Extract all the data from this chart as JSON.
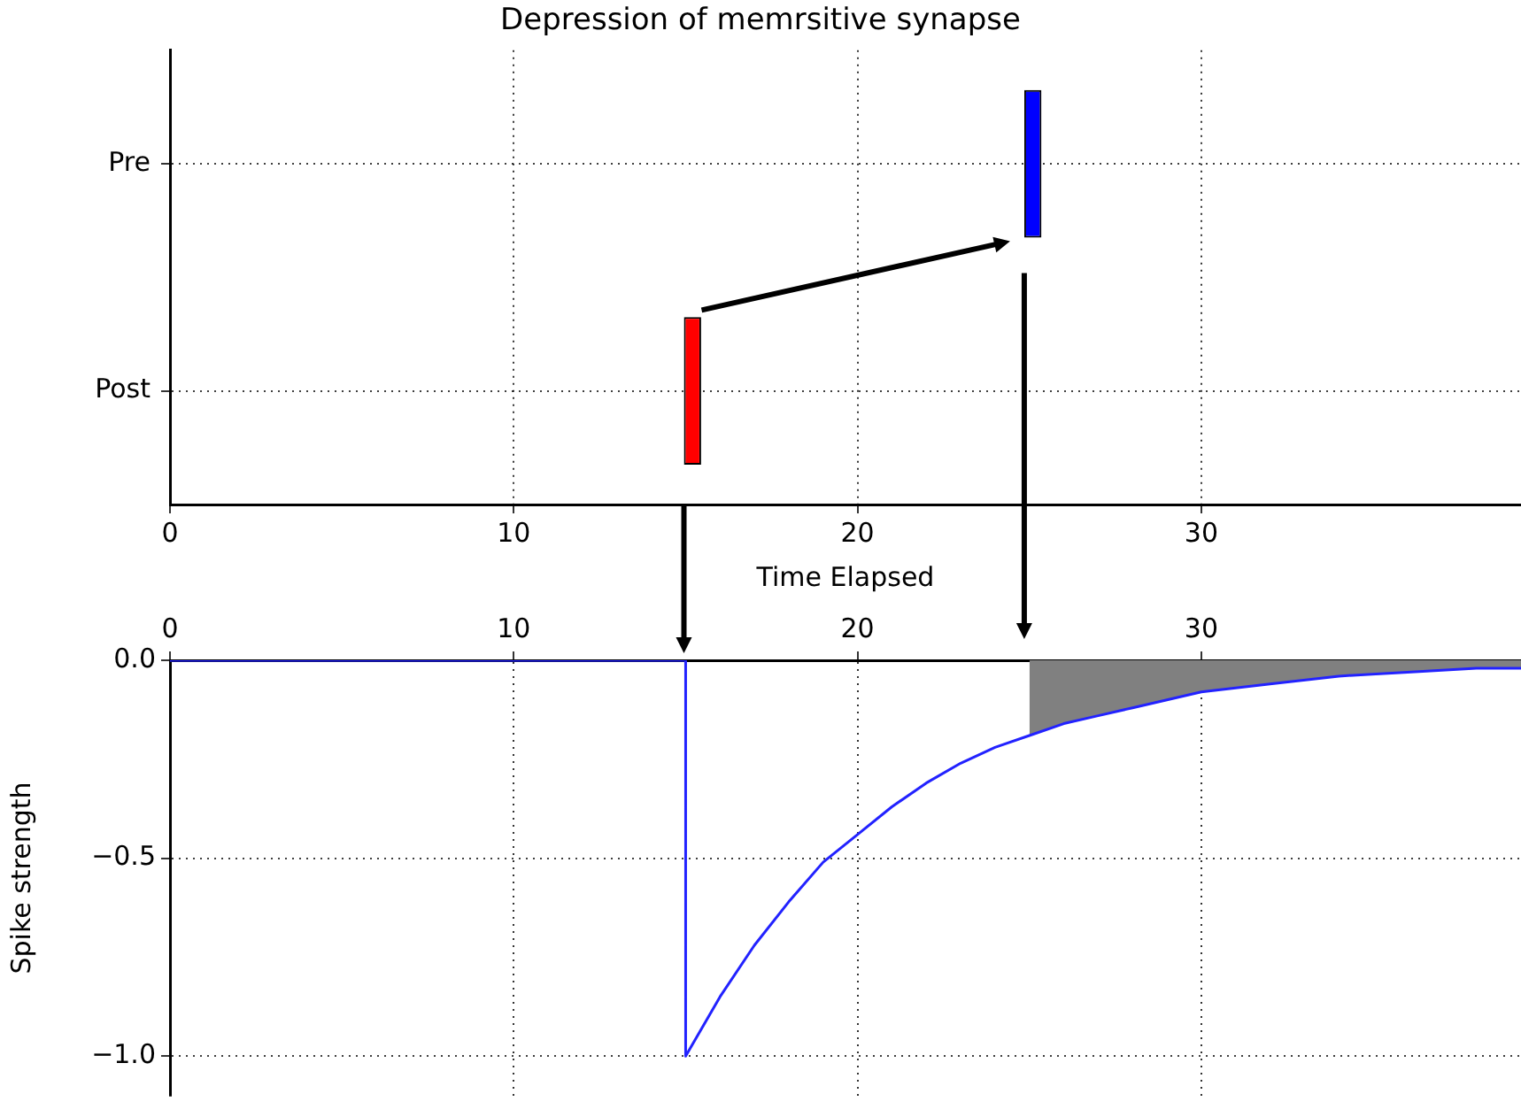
{
  "chart_data": [
    {
      "type": "bar",
      "orientation": "horizontal",
      "title": "Depression of memrsitive synapse",
      "xlabel": "Time Elapsed",
      "categories": [
        "Pre",
        "Post"
      ],
      "base": [
        24.85,
        14.95
      ],
      "values": [
        0.5,
        0.5
      ],
      "colors": [
        "#0000ff",
        "#ff0000"
      ],
      "xlim": [
        0,
        39.3
      ],
      "xticks": [
        0,
        10,
        20,
        30
      ],
      "grid": true
    },
    {
      "type": "line",
      "ylabel": "Spike strength",
      "xlim": [
        0,
        39.3
      ],
      "xticks": [
        0,
        10,
        20,
        30
      ],
      "ylim": [
        -1.1,
        0
      ],
      "yticks": [
        {
          "value": 0,
          "label": "0.0"
        },
        {
          "value": -0.5,
          "label": "−0.5"
        },
        {
          "value": -1,
          "label": "−1.0"
        }
      ],
      "grid": true,
      "series": [
        {
          "type": "line",
          "color": "#2222ff",
          "x": [
            0,
            15,
            15,
            16,
            17,
            18,
            19,
            20,
            21,
            22,
            23,
            24,
            25,
            26,
            27,
            28,
            29,
            30,
            32,
            34,
            36,
            38,
            39.3
          ],
          "values": [
            0,
            0,
            -1,
            -0.85,
            -0.72,
            -0.61,
            -0.51,
            -0.44,
            -0.37,
            -0.31,
            -0.26,
            -0.22,
            -0.19,
            -0.16,
            -0.14,
            -0.12,
            -0.1,
            -0.08,
            -0.06,
            -0.04,
            -0.03,
            -0.02,
            -0.02
          ]
        },
        {
          "type": "area",
          "color": "#808080",
          "x": [
            25,
            26,
            27,
            28,
            29,
            30,
            32,
            34,
            36,
            38,
            39.3
          ],
          "values": [
            -0.19,
            -0.16,
            -0.14,
            -0.12,
            -0.1,
            -0.08,
            -0.06,
            -0.04,
            -0.03,
            -0.02,
            -0.02
          ]
        }
      ]
    }
  ]
}
